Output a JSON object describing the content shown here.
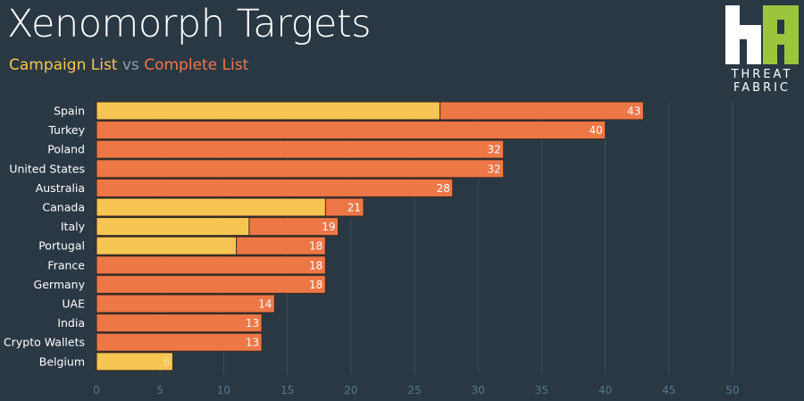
{
  "chart_data": {
    "type": "bar",
    "orientation": "horizontal",
    "title": "Xenomorph Targets",
    "subtitle": {
      "campaign": "Campaign List",
      "vs": "vs",
      "complete": "Complete List"
    },
    "categories": [
      "Spain",
      "Turkey",
      "Poland",
      "United States",
      "Australia",
      "Canada",
      "Italy",
      "Portugal",
      "France",
      "Germany",
      "UAE",
      "India",
      "Crypto Wallets",
      "Belgium"
    ],
    "series": [
      {
        "name": "Complete List",
        "color": "#ee7746",
        "values": [
          43,
          40,
          32,
          32,
          28,
          21,
          19,
          18,
          18,
          18,
          14,
          13,
          13,
          6
        ]
      },
      {
        "name": "Campaign List",
        "color": "#f7c552",
        "values": [
          27,
          0,
          0,
          0,
          0,
          18,
          12,
          11,
          0,
          0,
          0,
          0,
          0,
          6
        ]
      }
    ],
    "labels": [
      "43",
      "40",
      "32",
      "32",
      "28",
      "21",
      "19",
      "18",
      "18",
      "18",
      "14",
      "13",
      "13",
      "6"
    ],
    "xlim": [
      0,
      50
    ],
    "xticks": [
      0,
      5,
      10,
      15,
      20,
      25,
      30,
      35,
      40,
      45,
      50
    ],
    "grid": "vertical",
    "legend": "subtitle-top-left"
  },
  "logo": {
    "line1": "THREAT",
    "line2": "FABRIC",
    "colors": {
      "white": "#ffffff",
      "green": "#9bc53d"
    }
  },
  "colors": {
    "background": "#2a3844",
    "grid": "#3d4e59",
    "tick": "#4f7a86"
  }
}
